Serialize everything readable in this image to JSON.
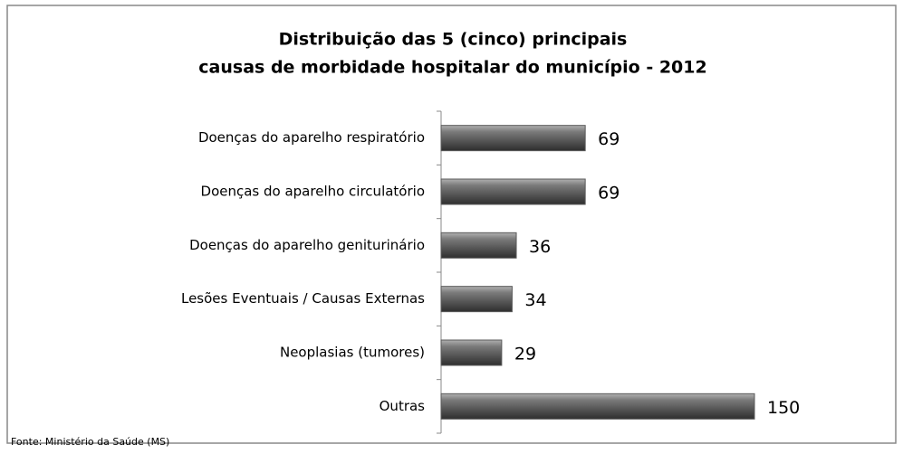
{
  "chart_data": {
    "type": "barh",
    "title": [
      "Distribuição das 5 (cinco) principais",
      "causas de morbidade hospitalar do município - 2012"
    ],
    "categories": [
      "Doenças do aparelho respiratório",
      "Doenças do aparelho circulatório",
      "Doenças do aparelho geniturinário",
      "Lesões Eventuais / Causas Externas",
      "Neoplasias (tumores)",
      "Outras"
    ],
    "values": [
      69,
      69,
      36,
      34,
      29,
      150
    ],
    "color": "#5a5a5a",
    "source": "Fonte: Ministério da Saúde (MS)"
  }
}
